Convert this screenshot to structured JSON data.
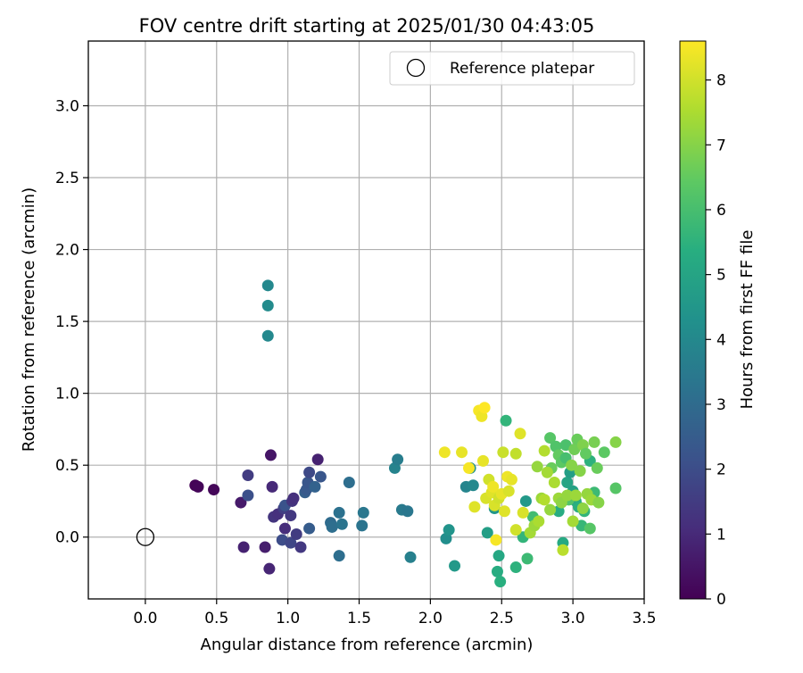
{
  "chart_data": {
    "type": "scatter",
    "title": "FOV centre drift starting at 2025/01/30 04:43:05",
    "xlabel": "Angular distance from reference (arcmin)",
    "ylabel": "Rotation from reference (arcmin)",
    "colorbar_label": "Hours from first FF file",
    "xlim": [
      -0.4,
      3.5
    ],
    "ylim": [
      -0.43,
      3.45
    ],
    "x_ticks": [
      "0.0",
      "0.5",
      "1.0",
      "1.5",
      "2.0",
      "2.5",
      "3.0",
      "3.5"
    ],
    "y_ticks": [
      "0.0",
      "0.5",
      "1.0",
      "1.5",
      "2.0",
      "2.5",
      "3.0"
    ],
    "colorbar_ticks": [
      "0",
      "1",
      "2",
      "3",
      "4",
      "5",
      "6",
      "7",
      "8"
    ],
    "colorbar_range": [
      0,
      8.6
    ],
    "grid": true,
    "colormap": "viridis",
    "legend": {
      "placement": "top-right",
      "label": "Reference platepar"
    },
    "reference_point": {
      "x": 0.0,
      "y": 0.0
    },
    "points": [
      {
        "x": 0.35,
        "y": 0.36,
        "h": 0.05
      },
      {
        "x": 0.37,
        "y": 0.35,
        "h": 0.1
      },
      {
        "x": 0.48,
        "y": 0.33,
        "h": 0.15
      },
      {
        "x": 0.67,
        "y": 0.24,
        "h": 0.6
      },
      {
        "x": 0.69,
        "y": -0.07,
        "h": 0.8
      },
      {
        "x": 0.84,
        "y": -0.07,
        "h": 0.7
      },
      {
        "x": 0.87,
        "y": -0.22,
        "h": 0.9
      },
      {
        "x": 0.88,
        "y": 0.57,
        "h": 0.5
      },
      {
        "x": 0.72,
        "y": 0.43,
        "h": 1.5
      },
      {
        "x": 0.72,
        "y": 0.29,
        "h": 2.1
      },
      {
        "x": 0.89,
        "y": 0.35,
        "h": 1.0
      },
      {
        "x": 0.9,
        "y": 0.14,
        "h": 1.3
      },
      {
        "x": 0.93,
        "y": 0.16,
        "h": 1.2
      },
      {
        "x": 0.97,
        "y": 0.2,
        "h": 1.6
      },
      {
        "x": 0.98,
        "y": 0.22,
        "h": 2.2
      },
      {
        "x": 0.96,
        "y": -0.02,
        "h": 2.0
      },
      {
        "x": 0.98,
        "y": 0.06,
        "h": 1.1
      },
      {
        "x": 1.02,
        "y": 0.15,
        "h": 1.4
      },
      {
        "x": 1.03,
        "y": 0.25,
        "h": 1.3
      },
      {
        "x": 1.04,
        "y": 0.27,
        "h": 1.2
      },
      {
        "x": 1.02,
        "y": -0.04,
        "h": 1.8
      },
      {
        "x": 1.06,
        "y": 0.02,
        "h": 1.5
      },
      {
        "x": 1.09,
        "y": -0.07,
        "h": 1.4
      },
      {
        "x": 1.12,
        "y": 0.31,
        "h": 2.6
      },
      {
        "x": 1.13,
        "y": 0.33,
        "h": 2.4
      },
      {
        "x": 1.14,
        "y": 0.38,
        "h": 2.3
      },
      {
        "x": 1.15,
        "y": 0.45,
        "h": 1.9
      },
      {
        "x": 1.15,
        "y": 0.06,
        "h": 2.5
      },
      {
        "x": 1.19,
        "y": 0.35,
        "h": 2.7
      },
      {
        "x": 1.21,
        "y": 0.54,
        "h": 0.8
      },
      {
        "x": 1.23,
        "y": 0.42,
        "h": 2.3
      },
      {
        "x": 1.3,
        "y": 0.1,
        "h": 3.0
      },
      {
        "x": 1.31,
        "y": 0.07,
        "h": 3.1
      },
      {
        "x": 1.36,
        "y": 0.17,
        "h": 3.2
      },
      {
        "x": 1.36,
        "y": -0.13,
        "h": 3.1
      },
      {
        "x": 1.38,
        "y": 0.09,
        "h": 3.3
      },
      {
        "x": 1.43,
        "y": 0.38,
        "h": 3.1
      },
      {
        "x": 1.52,
        "y": 0.08,
        "h": 3.3
      },
      {
        "x": 1.53,
        "y": 0.17,
        "h": 3.4
      },
      {
        "x": 1.75,
        "y": 0.48,
        "h": 3.8
      },
      {
        "x": 1.77,
        "y": 0.54,
        "h": 3.6
      },
      {
        "x": 1.8,
        "y": 0.19,
        "h": 3.5
      },
      {
        "x": 1.84,
        "y": 0.18,
        "h": 3.4
      },
      {
        "x": 1.86,
        "y": -0.14,
        "h": 3.7
      },
      {
        "x": 0.86,
        "y": 1.75,
        "h": 4.0
      },
      {
        "x": 0.86,
        "y": 1.61,
        "h": 4.1
      },
      {
        "x": 0.86,
        "y": 1.4,
        "h": 4.0
      },
      {
        "x": 2.11,
        "y": -0.01,
        "h": 4.2
      },
      {
        "x": 2.13,
        "y": 0.05,
        "h": 4.4
      },
      {
        "x": 2.17,
        "y": -0.2,
        "h": 4.6
      },
      {
        "x": 2.25,
        "y": 0.35,
        "h": 3.9
      },
      {
        "x": 2.28,
        "y": 0.48,
        "h": 4.3
      },
      {
        "x": 2.3,
        "y": 0.36,
        "h": 4.0
      },
      {
        "x": 2.4,
        "y": 0.03,
        "h": 4.8
      },
      {
        "x": 2.45,
        "y": 0.2,
        "h": 4.5
      },
      {
        "x": 2.47,
        "y": -0.24,
        "h": 5.3
      },
      {
        "x": 2.48,
        "y": -0.13,
        "h": 5.1
      },
      {
        "x": 2.49,
        "y": -0.31,
        "h": 5.4
      },
      {
        "x": 2.53,
        "y": 0.81,
        "h": 5.6
      },
      {
        "x": 2.6,
        "y": -0.21,
        "h": 5.5
      },
      {
        "x": 2.65,
        "y": 0.0,
        "h": 5.6
      },
      {
        "x": 2.67,
        "y": 0.25,
        "h": 4.6
      },
      {
        "x": 2.68,
        "y": -0.15,
        "h": 5.8
      },
      {
        "x": 2.72,
        "y": 0.14,
        "h": 5.9
      },
      {
        "x": 2.9,
        "y": 0.18,
        "h": 5.3
      },
      {
        "x": 2.93,
        "y": -0.04,
        "h": 5.2
      },
      {
        "x": 2.96,
        "y": 0.38,
        "h": 5.0
      },
      {
        "x": 2.98,
        "y": 0.45,
        "h": 4.8
      },
      {
        "x": 3.0,
        "y": 0.32,
        "h": 4.9
      },
      {
        "x": 3.02,
        "y": 0.25,
        "h": 5.0
      },
      {
        "x": 3.04,
        "y": 0.21,
        "h": 5.4
      },
      {
        "x": 3.06,
        "y": 0.08,
        "h": 5.7
      },
      {
        "x": 3.08,
        "y": 0.18,
        "h": 5.6
      },
      {
        "x": 3.12,
        "y": 0.53,
        "h": 5.5
      },
      {
        "x": 3.15,
        "y": 0.31,
        "h": 5.8
      },
      {
        "x": 2.84,
        "y": 0.69,
        "h": 6.3
      },
      {
        "x": 2.85,
        "y": 0.48,
        "h": 6.6
      },
      {
        "x": 2.88,
        "y": 0.63,
        "h": 6.2
      },
      {
        "x": 2.9,
        "y": 0.57,
        "h": 6.5
      },
      {
        "x": 2.92,
        "y": 0.52,
        "h": 6.4
      },
      {
        "x": 2.95,
        "y": 0.64,
        "h": 6.1
      },
      {
        "x": 2.95,
        "y": 0.55,
        "h": 6.0
      },
      {
        "x": 2.97,
        "y": 0.26,
        "h": 6.2
      },
      {
        "x": 3.01,
        "y": 0.61,
        "h": 6.7
      },
      {
        "x": 3.03,
        "y": 0.68,
        "h": 6.6
      },
      {
        "x": 3.07,
        "y": 0.64,
        "h": 6.9
      },
      {
        "x": 3.09,
        "y": 0.58,
        "h": 6.5
      },
      {
        "x": 3.12,
        "y": 0.06,
        "h": 6.3
      },
      {
        "x": 3.15,
        "y": 0.66,
        "h": 6.8
      },
      {
        "x": 3.17,
        "y": 0.48,
        "h": 6.6
      },
      {
        "x": 3.22,
        "y": 0.59,
        "h": 6.4
      },
      {
        "x": 3.3,
        "y": 0.66,
        "h": 7.0
      },
      {
        "x": 3.3,
        "y": 0.34,
        "h": 6.3
      },
      {
        "x": 2.75,
        "y": 0.49,
        "h": 7.2
      },
      {
        "x": 2.78,
        "y": 0.27,
        "h": 7.3
      },
      {
        "x": 2.8,
        "y": 0.6,
        "h": 7.6
      },
      {
        "x": 2.82,
        "y": 0.45,
        "h": 7.4
      },
      {
        "x": 2.84,
        "y": 0.19,
        "h": 7.2
      },
      {
        "x": 2.87,
        "y": 0.38,
        "h": 7.5
      },
      {
        "x": 2.9,
        "y": 0.27,
        "h": 7.3
      },
      {
        "x": 2.92,
        "y": 0.24,
        "h": 7.1
      },
      {
        "x": 2.93,
        "y": -0.09,
        "h": 7.7
      },
      {
        "x": 2.96,
        "y": 0.29,
        "h": 7.2
      },
      {
        "x": 2.99,
        "y": 0.5,
        "h": 7.0
      },
      {
        "x": 3.0,
        "y": 0.11,
        "h": 7.4
      },
      {
        "x": 3.02,
        "y": 0.29,
        "h": 7.3
      },
      {
        "x": 3.05,
        "y": 0.46,
        "h": 7.0
      },
      {
        "x": 3.07,
        "y": 0.2,
        "h": 7.1
      },
      {
        "x": 3.1,
        "y": 0.3,
        "h": 7.2
      },
      {
        "x": 3.13,
        "y": 0.26,
        "h": 7.3
      },
      {
        "x": 3.18,
        "y": 0.24,
        "h": 7.0
      },
      {
        "x": 2.7,
        "y": 0.03,
        "h": 7.4
      },
      {
        "x": 2.73,
        "y": 0.08,
        "h": 7.3
      },
      {
        "x": 2.76,
        "y": 0.11,
        "h": 7.5
      },
      {
        "x": 2.8,
        "y": 0.26,
        "h": 7.6
      },
      {
        "x": 2.1,
        "y": 0.59,
        "h": 8.4
      },
      {
        "x": 2.22,
        "y": 0.59,
        "h": 8.3
      },
      {
        "x": 2.27,
        "y": 0.48,
        "h": 8.5
      },
      {
        "x": 2.31,
        "y": 0.21,
        "h": 8.2
      },
      {
        "x": 2.34,
        "y": 0.88,
        "h": 8.5
      },
      {
        "x": 2.36,
        "y": 0.84,
        "h": 8.4
      },
      {
        "x": 2.38,
        "y": 0.9,
        "h": 8.6
      },
      {
        "x": 2.37,
        "y": 0.53,
        "h": 8.3
      },
      {
        "x": 2.39,
        "y": 0.27,
        "h": 8.1
      },
      {
        "x": 2.41,
        "y": 0.4,
        "h": 8.0
      },
      {
        "x": 2.43,
        "y": 0.31,
        "h": 8.2
      },
      {
        "x": 2.44,
        "y": 0.35,
        "h": 8.4
      },
      {
        "x": 2.45,
        "y": 0.22,
        "h": 8.1
      },
      {
        "x": 2.46,
        "y": -0.02,
        "h": 8.5
      },
      {
        "x": 2.48,
        "y": 0.27,
        "h": 8.0
      },
      {
        "x": 2.5,
        "y": 0.3,
        "h": 8.3
      },
      {
        "x": 2.51,
        "y": 0.59,
        "h": 7.9
      },
      {
        "x": 2.52,
        "y": 0.18,
        "h": 8.2
      },
      {
        "x": 2.54,
        "y": 0.42,
        "h": 8.4
      },
      {
        "x": 2.55,
        "y": 0.32,
        "h": 8.1
      },
      {
        "x": 2.57,
        "y": 0.4,
        "h": 8.3
      },
      {
        "x": 2.6,
        "y": 0.05,
        "h": 8.0
      },
      {
        "x": 2.63,
        "y": 0.72,
        "h": 8.2
      },
      {
        "x": 2.65,
        "y": 0.17,
        "h": 8.1
      },
      {
        "x": 2.6,
        "y": 0.58,
        "h": 7.8
      }
    ]
  }
}
